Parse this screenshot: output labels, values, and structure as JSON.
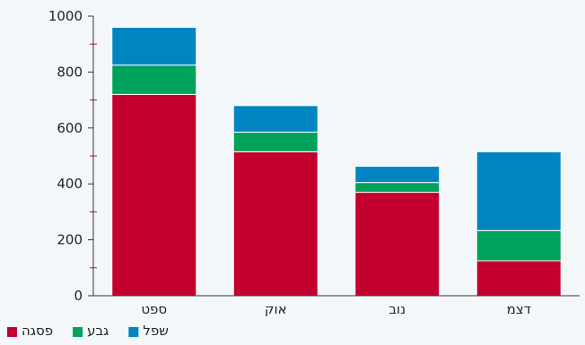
{
  "chart_data": {
    "type": "bar",
    "stacked": true,
    "categories": [
      "ספט",
      "אוק",
      "נוב",
      "דצמ"
    ],
    "series": [
      {
        "name": "פסגה",
        "color": "#c4002f",
        "values": [
          720,
          515,
          370,
          125
        ]
      },
      {
        "name": "גבע",
        "color": "#00a15a",
        "values": [
          105,
          70,
          35,
          108
        ]
      },
      {
        "name": "שפל",
        "color": "#0085c2",
        "values": [
          135,
          95,
          58,
          282
        ]
      }
    ],
    "y_ticks": [
      "0",
      "200",
      "400",
      "600",
      "800",
      "1000"
    ],
    "ylim": [
      0,
      1000
    ],
    "grid": false,
    "legend_position": "bottom-left"
  }
}
